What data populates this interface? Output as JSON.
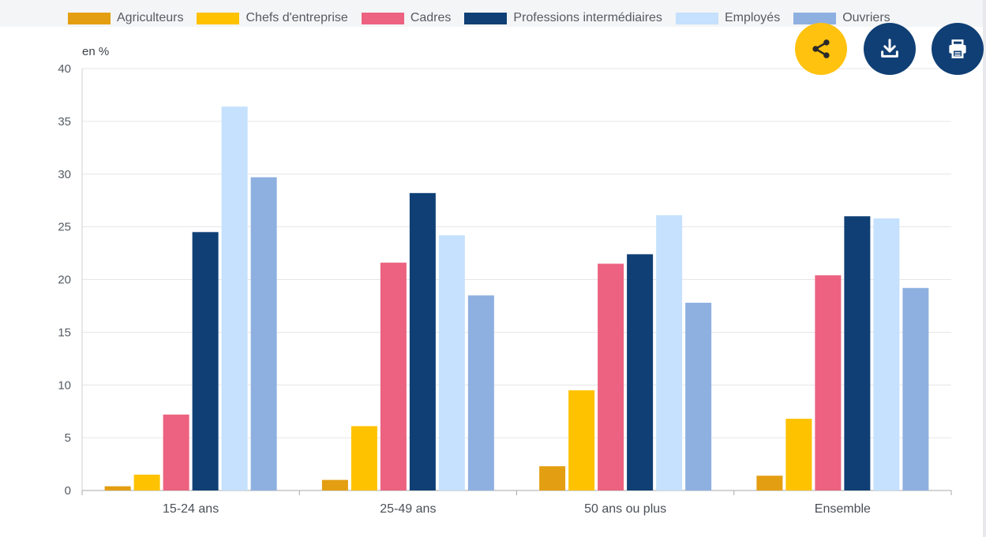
{
  "toolbar": {
    "share_icon": "share-icon",
    "download_icon": "download-icon",
    "print_icon": "print-icon",
    "colors": {
      "share": "#ffc20e",
      "download": "#0f3f75",
      "print": "#0f3f75",
      "icon": "#ffffff"
    }
  },
  "chart_data": {
    "type": "bar",
    "ylabel": "en %",
    "ylim": [
      0,
      40
    ],
    "yticks": [
      0,
      5,
      10,
      15,
      20,
      25,
      30,
      35,
      40
    ],
    "grid": true,
    "legend_position": "top",
    "categories": [
      "15-24 ans",
      "25-49 ans",
      "50 ans ou plus",
      "Ensemble"
    ],
    "series": [
      {
        "name": "Agriculteurs",
        "color": "#e39e11",
        "values": [
          0.4,
          1.0,
          2.3,
          1.4
        ]
      },
      {
        "name": "Chefs d'entreprise",
        "color": "#ffc200",
        "values": [
          1.5,
          6.1,
          9.5,
          6.8
        ]
      },
      {
        "name": "Cadres",
        "color": "#ec6280",
        "values": [
          7.2,
          21.6,
          21.5,
          20.4
        ]
      },
      {
        "name": "Professions intermédiaires",
        "color": "#0f3f75",
        "values": [
          24.5,
          28.2,
          22.4,
          26.0
        ]
      },
      {
        "name": "Employés",
        "color": "#c5e1fd",
        "values": [
          36.4,
          24.2,
          26.1,
          25.8
        ]
      },
      {
        "name": "Ouvriers",
        "color": "#8eb0e0",
        "values": [
          29.7,
          18.5,
          17.8,
          19.2
        ]
      }
    ]
  }
}
